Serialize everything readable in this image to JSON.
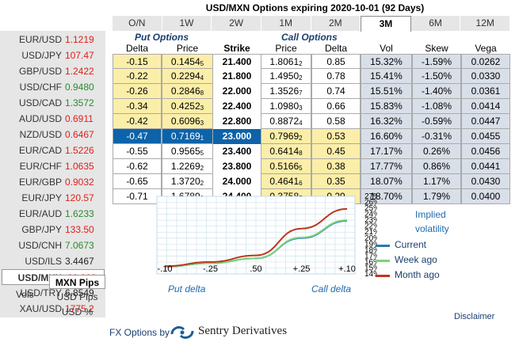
{
  "title": "USD/MXN Options expiring 2020-10-01 (92 Days)",
  "tabs": [
    "O/N",
    "1W",
    "2W",
    "1M",
    "2M",
    "3M",
    "6M",
    "12M"
  ],
  "active_tab": "3M",
  "sidebar": {
    "pairs": [
      {
        "name": "EUR/USD",
        "value": "1.1219",
        "color": "#e0201b"
      },
      {
        "name": "USD/JPY",
        "value": "107.47",
        "color": "#e0201b"
      },
      {
        "name": "GBP/USD",
        "value": "1.2422",
        "color": "#e0201b"
      },
      {
        "name": "USD/CHF",
        "value": "0.9480",
        "color": "#2b8a2b"
      },
      {
        "name": "USD/CAD",
        "value": "1.3572",
        "color": "#2b8a2b"
      },
      {
        "name": "AUD/USD",
        "value": "0.6911",
        "color": "#e0201b"
      },
      {
        "name": "NZD/USD",
        "value": "0.6467",
        "color": "#e0201b"
      },
      {
        "name": "EUR/CAD",
        "value": "1.5226",
        "color": "#e0201b"
      },
      {
        "name": "EUR/CHF",
        "value": "1.0635",
        "color": "#e0201b"
      },
      {
        "name": "EUR/GBP",
        "value": "0.9032",
        "color": "#e0201b"
      },
      {
        "name": "EUR/JPY",
        "value": "120.57",
        "color": "#e0201b"
      },
      {
        "name": "EUR/AUD",
        "value": "1.6233",
        "color": "#2b8a2b"
      },
      {
        "name": "GBP/JPY",
        "value": "133.50",
        "color": "#e0201b"
      },
      {
        "name": "USD/CNH",
        "value": "7.0673",
        "color": "#2b8a2b"
      },
      {
        "name": "USD/ILS",
        "value": "3.4467",
        "color": "#222"
      },
      {
        "name": "USD/MXN",
        "value": "22.808",
        "color": "#e0201b",
        "selected": true
      },
      {
        "name": "USD/TRY",
        "value": "6.8549",
        "color": "#222"
      },
      {
        "name": "XAU/USD",
        "value": "1775.2",
        "color": "#e0201b"
      }
    ],
    "vols_label": "Vols",
    "vol_options": [
      "MXN Pips",
      "USD Pips",
      "USD %"
    ],
    "active_vol_option": "MXN Pips"
  },
  "put_header": "Put Options",
  "call_header": "Call Options",
  "columns": [
    "Delta",
    "Price",
    "Strike",
    "Price",
    "Delta",
    "Vol",
    "Skew",
    "Vega"
  ],
  "rows": [
    {
      "put_delta": "-0.15",
      "put_price": "0.1454",
      "put_price_sub": "5",
      "strike": "21.400",
      "call_price": "1.8061",
      "call_price_sub": "2",
      "call_delta": "0.85",
      "vol": "15.32%",
      "skew": "-1.59%",
      "vega": "0.0262"
    },
    {
      "put_delta": "-0.22",
      "put_price": "0.2294",
      "put_price_sub": "4",
      "strike": "21.800",
      "call_price": "1.4950",
      "call_price_sub": "2",
      "call_delta": "0.78",
      "vol": "15.41%",
      "skew": "-1.50%",
      "vega": "0.0330"
    },
    {
      "put_delta": "-0.26",
      "put_price": "0.2846",
      "put_price_sub": "8",
      "strike": "22.000",
      "call_price": "1.3526",
      "call_price_sub": "7",
      "call_delta": "0.74",
      "vol": "15.51%",
      "skew": "-1.40%",
      "vega": "0.0361"
    },
    {
      "put_delta": "-0.34",
      "put_price": "0.4252",
      "put_price_sub": "3",
      "strike": "22.400",
      "call_price": "1.0980",
      "call_price_sub": "3",
      "call_delta": "0.66",
      "vol": "15.83%",
      "skew": "-1.08%",
      "vega": "0.0414"
    },
    {
      "put_delta": "-0.42",
      "put_price": "0.6096",
      "put_price_sub": "3",
      "strike": "22.800",
      "call_price": "0.8872",
      "call_price_sub": "4",
      "call_delta": "0.58",
      "vol": "16.32%",
      "skew": "-0.59%",
      "vega": "0.0447"
    },
    {
      "put_delta": "-0.47",
      "put_price": "0.7169",
      "put_price_sub": "1",
      "strike": "23.000",
      "call_price": "0.7969",
      "call_price_sub": "2",
      "call_delta": "0.53",
      "vol": "16.60%",
      "skew": "-0.31%",
      "vega": "0.0455",
      "atm": true
    },
    {
      "put_delta": "-0.55",
      "put_price": "0.9565",
      "put_price_sub": "5",
      "strike": "23.400",
      "call_price": "0.6414",
      "call_price_sub": "8",
      "call_delta": "0.45",
      "vol": "17.17%",
      "skew": "0.26%",
      "vega": "0.0456"
    },
    {
      "put_delta": "-0.62",
      "put_price": "1.2269",
      "put_price_sub": "2",
      "strike": "23.800",
      "call_price": "0.5166",
      "call_price_sub": "5",
      "call_delta": "0.38",
      "vol": "17.77%",
      "skew": "0.86%",
      "vega": "0.0441"
    },
    {
      "put_delta": "-0.65",
      "put_price": "1.3720",
      "put_price_sub": "2",
      "strike": "24.000",
      "call_price": "0.4641",
      "call_price_sub": "6",
      "call_delta": "0.35",
      "vol": "18.07%",
      "skew": "1.17%",
      "vega": "0.0430"
    },
    {
      "put_delta": "-0.71",
      "put_price": "1.6789",
      "put_price_sub": "3",
      "strike": "24.400",
      "call_price": "0.3758",
      "call_price_sub": "7",
      "call_delta": "0.29",
      "vol": "18.70%",
      "skew": "1.79%",
      "vega": "0.0400"
    }
  ],
  "chart": {
    "x_ticks": [
      "-.10",
      "-.25",
      ".50",
      "+.25",
      "+.10"
    ],
    "y_ticks": [
      "27%",
      "26%",
      "25%",
      "24%",
      "23%",
      "22%",
      "21%",
      "20%",
      "19%",
      "18%",
      "17%",
      "16%",
      "15%",
      "14%"
    ],
    "left_caption": "Put delta",
    "right_caption": "Call delta",
    "legend_title_1": "Implied",
    "legend_title_2": "volatility",
    "series_colors": {
      "current": "#2a7ab0",
      "week_ago": "#7cd27c",
      "month_ago": "#c0361c"
    }
  },
  "chart_data": {
    "type": "line",
    "x": [
      "-.10",
      "-.25",
      ".50",
      "+.25",
      "+.10"
    ],
    "series": [
      {
        "name": "Current",
        "values": [
          15.2,
          15.8,
          16.6,
          20.0,
          22.9
        ]
      },
      {
        "name": "Week ago",
        "values": [
          15.2,
          15.8,
          16.6,
          20.1,
          23.0
        ]
      },
      {
        "name": "Month ago",
        "values": [
          15.3,
          16.0,
          17.1,
          21.6,
          24.9
        ]
      }
    ],
    "ylim": [
      14,
      27
    ],
    "legend": "right"
  },
  "disclaimer": "Disclaimer",
  "footer": {
    "prefix": "FX Options by",
    "brand": "Sentry Derivatives"
  }
}
